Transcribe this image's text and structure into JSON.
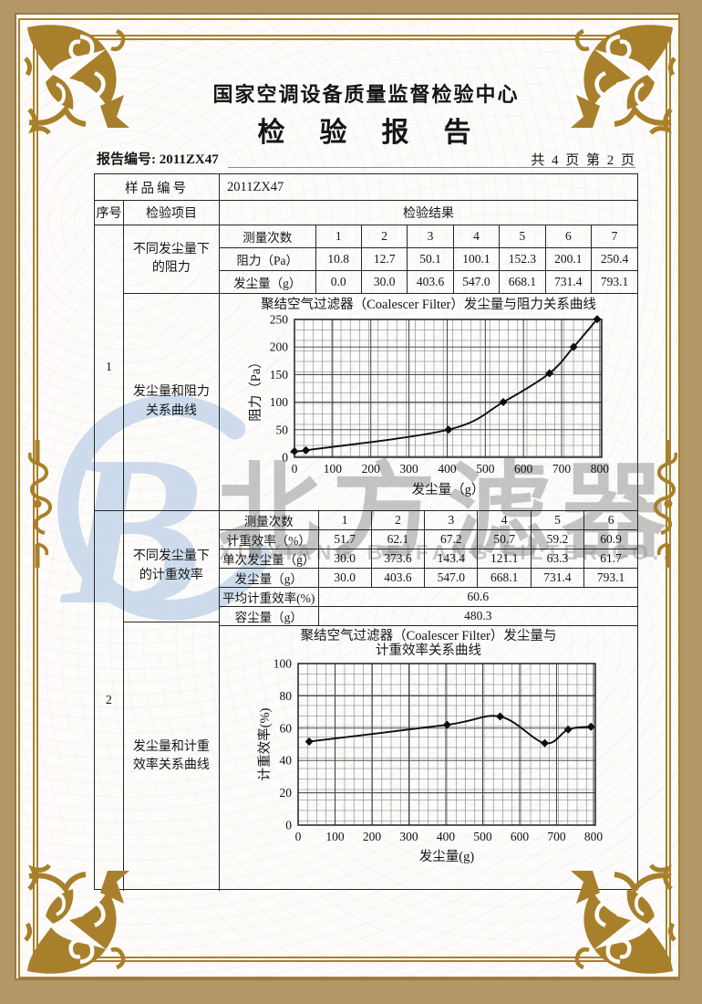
{
  "header": {
    "organization": "国家空调设备质量监督检验中心",
    "report_title": "检　验　报　告",
    "report_no": "报告编号: 2011ZX47",
    "page_indicator": "共 4 页 第 2 页"
  },
  "outer_table": {
    "sample_no_label": "样品编号",
    "sample_no_value": "2011ZX47",
    "col_serial": "序号",
    "col_item": "检验项目",
    "col_result": "检验结果"
  },
  "section1": {
    "serial": "1",
    "item_data": "不同发尘量下的阻力",
    "item_chart": "发尘量和阻力关系曲线",
    "table": {
      "rows": [
        {
          "label": "测量次数",
          "values": [
            "1",
            "2",
            "3",
            "4",
            "5",
            "6",
            "7"
          ]
        },
        {
          "label": "阻力（Pa）",
          "values": [
            "10.8",
            "12.7",
            "50.1",
            "100.1",
            "152.3",
            "200.1",
            "250.4"
          ]
        },
        {
          "label": "发尘量（g）",
          "values": [
            "0.0",
            "30.0",
            "403.6",
            "547.0",
            "668.1",
            "731.4",
            "793.1"
          ]
        }
      ]
    }
  },
  "section2": {
    "serial": "2",
    "item_data": "不同发尘量下的计重效率",
    "item_chart": "发尘量和计重效率关系曲线",
    "table": {
      "rows": [
        {
          "label": "测量次数",
          "values": [
            "1",
            "2",
            "3",
            "4",
            "5",
            "6"
          ]
        },
        {
          "label": "计重效率（%）",
          "values": [
            "51.7",
            "62.1",
            "67.2",
            "50.7",
            "59.2",
            "60.9"
          ]
        },
        {
          "label": "单次发尘量（g）",
          "values": [
            "30.0",
            "373.6",
            "143.4",
            "121.1",
            "63.3",
            "61.7"
          ]
        },
        {
          "label": "发尘量（g）",
          "values": [
            "30.0",
            "403.6",
            "547.0",
            "668.1",
            "731.4",
            "793.1"
          ]
        }
      ],
      "merged": [
        {
          "label": "平均计重效率(%)",
          "value": "60.6"
        },
        {
          "label": "容尘量（g）",
          "value": "480.3"
        }
      ]
    }
  },
  "chart_data": [
    {
      "type": "line",
      "title": "聚结空气过滤器（Coalescer Filter）发尘量与阻力关系曲线",
      "xlabel": "发尘量（g）",
      "ylabel": "阻力（Pa）",
      "x": [
        0,
        30,
        403.6,
        547.0,
        668.1,
        731.4,
        793.1
      ],
      "y": [
        10.8,
        12.7,
        50.1,
        100.1,
        152.3,
        200.1,
        250.4
      ],
      "xticks": [
        0,
        100,
        200,
        300,
        400,
        500,
        600,
        700,
        800
      ],
      "yticks": [
        0,
        50,
        100,
        150,
        200,
        250
      ],
      "xlim": [
        0,
        805
      ],
      "ylim": [
        0,
        250
      ],
      "grid": "fine",
      "marker": "diamond",
      "legend": "none"
    },
    {
      "type": "line",
      "title": "聚结空气过滤器（Coalescer Filter）发尘量与",
      "title_line2": "计重效率关系曲线",
      "xlabel": "发尘量(g)",
      "ylabel": "计重效率(%)",
      "x": [
        30,
        403.6,
        547.0,
        668.1,
        731.4,
        793.1
      ],
      "y": [
        51.7,
        62.1,
        67.2,
        50.7,
        59.2,
        60.9
      ],
      "xticks": [
        0,
        100,
        200,
        300,
        400,
        500,
        600,
        700,
        800
      ],
      "yticks": [
        0,
        20,
        40,
        60,
        80,
        100
      ],
      "xlim": [
        0,
        805
      ],
      "ylim": [
        0,
        100
      ],
      "grid": "fine",
      "marker": "diamond",
      "legend": "none"
    }
  ],
  "watermark": {
    "logo_letter": "B",
    "cn_text": "北方滤器",
    "en_text": "XINXIANG BEIFANG FILTER CO., LTD"
  },
  "colors": {
    "frame_tan": "#b39766",
    "ornament_gold": "#a8802b",
    "watermark_blue": "#c5d6ea",
    "watermark_gray": "#8f8f8f",
    "table_line": "#262626",
    "curve": "#0d0d0d"
  }
}
